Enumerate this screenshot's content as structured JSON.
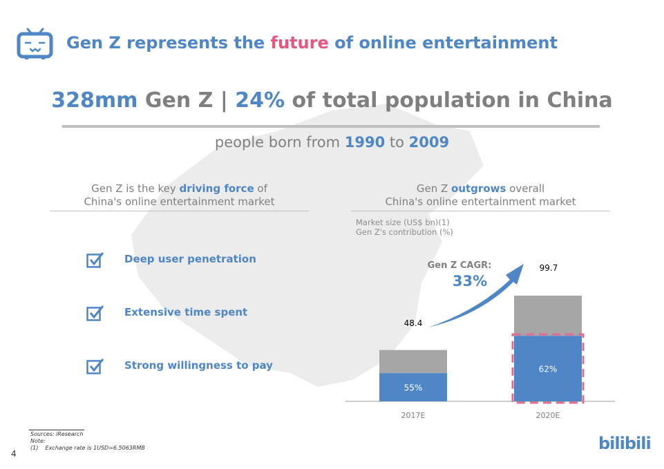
{
  "header": {
    "title_pre": "Gen Z represents the ",
    "title_em": "future",
    "title_post": " of online entertainment"
  },
  "headline": {
    "a": "328mm",
    "b": " Gen Z | ",
    "c": "24%",
    "d": " of total population in China"
  },
  "subline": {
    "a": "people born from ",
    "b": "1990",
    "c": " to ",
    "d": "2009"
  },
  "left": {
    "h1_pre": "Gen Z is the key ",
    "h1_em": "driving force",
    "h1_post": " of",
    "h2": "China's online entertainment market",
    "items": [
      "Deep user penetration",
      "Extensive time spent",
      "Strong willingness to pay"
    ]
  },
  "right": {
    "h1_pre": "Gen Z ",
    "h1_em": "outgrows",
    "h1_post": " overall",
    "h2": "China's online entertainment market"
  },
  "chart_data": {
    "type": "bar",
    "stacked": true,
    "legend_lines": [
      "Market size (US$ bn)(1)",
      "Gen Z's contribution (%)"
    ],
    "categories": [
      "2017E",
      "2020E"
    ],
    "totals": [
      48.4,
      99.7
    ],
    "total_labels": [
      "48.4",
      "99.7"
    ],
    "genz_share_pct": [
      55,
      62
    ],
    "share_labels": [
      "55%",
      "62%"
    ],
    "annotation_title": "Gen Z CAGR:",
    "annotation_value": "33%",
    "colors": {
      "genz": "#4e86c6",
      "other": "#a6a6a6",
      "highlight": "#e06c8f"
    }
  },
  "footer": {
    "sources": "Sources: iResearch",
    "note": "Note:",
    "note1_num": "(1)",
    "note1": "Exchange rate is 1USD=6.5063RMB",
    "page": "4",
    "brand": "bilibili"
  }
}
